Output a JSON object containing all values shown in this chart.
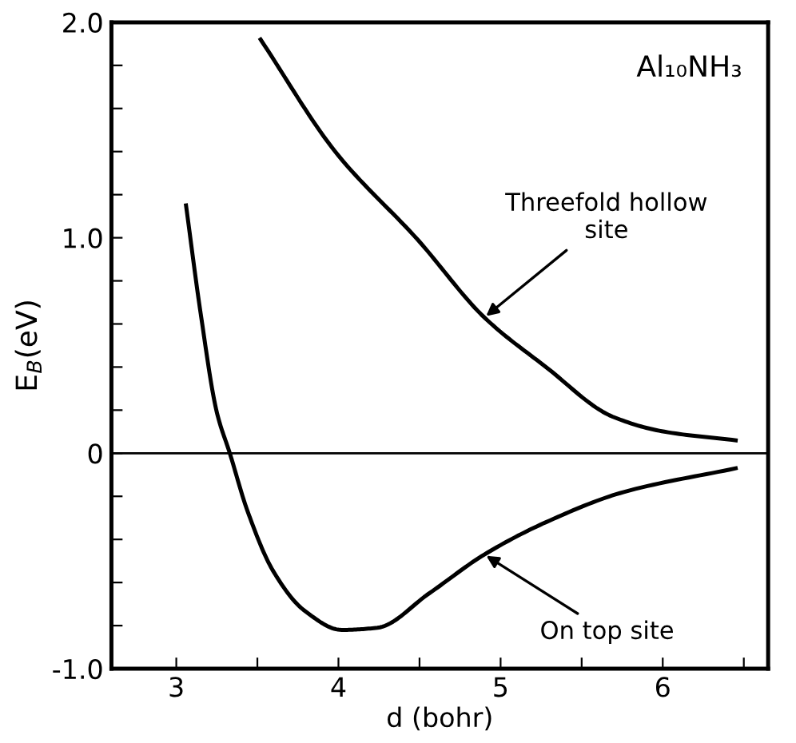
{
  "chart_data": {
    "type": "line",
    "title": "Al₁₀NH₃",
    "xlabel": "d (bohr)",
    "ylabel": "E$_{B}$(eV)",
    "xlim": [
      2.6,
      6.65
    ],
    "ylim": [
      -1.0,
      2.0
    ],
    "xticks": [
      3,
      {
        "value": 3.5,
        "label": null
      },
      4,
      {
        "value": 4.5,
        "label": null
      },
      5,
      {
        "value": 5.5,
        "label": null
      },
      6,
      {
        "value": 6.5,
        "label": null
      }
    ],
    "yticks": [
      {
        "value": -1.0,
        "label": "-1.0"
      },
      {
        "value": -0.8,
        "label": null
      },
      {
        "value": -0.6,
        "label": null
      },
      {
        "value": -0.4,
        "label": null
      },
      {
        "value": -0.2,
        "label": null
      },
      0,
      {
        "value": 0.2,
        "label": null
      },
      {
        "value": 0.4,
        "label": null
      },
      {
        "value": 0.6,
        "label": null
      },
      {
        "value": 0.8,
        "label": null
      },
      {
        "value": 1.0,
        "label": "1.0"
      },
      {
        "value": 1.2,
        "label": null
      },
      {
        "value": 1.4,
        "label": null
      },
      {
        "value": 1.6,
        "label": null
      },
      {
        "value": 1.8,
        "label": null
      },
      {
        "value": 2.0,
        "label": "2.0"
      }
    ],
    "grid": false,
    "legend": false,
    "marker": "none",
    "line_style": "solid",
    "series": [
      {
        "color": "#000000",
        "x": [
          3.52,
          3.98,
          4.49,
          4.9,
          5.28,
          5.69,
          6.01,
          6.45
        ],
        "values": [
          1.92,
          1.4,
          0.99,
          0.63,
          0.4,
          0.17,
          0.1,
          0.06
        ]
      },
      {
        "color": "#000000",
        "x": [
          3.06,
          3.15,
          3.25,
          3.33,
          3.44,
          3.6,
          3.79,
          4.02,
          4.24,
          4.56,
          4.9,
          5.28,
          5.76,
          6.45
        ],
        "values": [
          1.15,
          0.65,
          0.19,
          0.0,
          -0.27,
          -0.55,
          -0.73,
          -0.82,
          -0.81,
          -0.65,
          -0.47,
          -0.32,
          -0.18,
          -0.07
        ]
      }
    ],
    "ref_lines": [
      {
        "axis": "y",
        "value": 0,
        "color": "#000000",
        "line_style": "solid"
      }
    ],
    "annotations": [
      {
        "text": "Threefold hollow\nsite",
        "x": 4.9,
        "y": 0.63
      },
      {
        "text": "On top site",
        "x": 4.9,
        "y": -0.47
      }
    ]
  }
}
